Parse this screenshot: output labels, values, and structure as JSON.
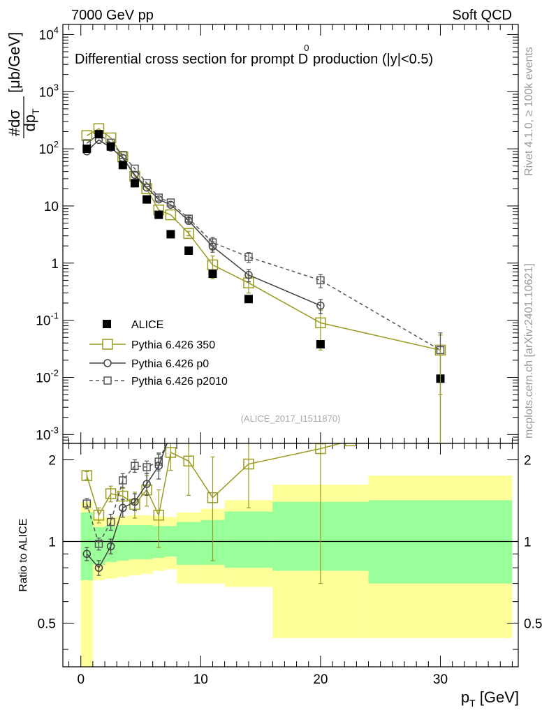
{
  "header": {
    "left": "7000 GeV pp",
    "right": "Soft QCD"
  },
  "side_labels": {
    "rivet": "Rivet 4.1.0, ≥ 100k events",
    "mcplots": "mcplots.cern.ch [arXiv:2401.10621]"
  },
  "colors": {
    "alice": "#000000",
    "p350": "#9a9a20",
    "p0": "#404040",
    "p2010": "#555555",
    "band_outer": "#ffff99",
    "band_inner": "#99ff99"
  },
  "chart_data": [
    {
      "type": "line",
      "title": "Differential cross section for prompt D0 production (|y|<0.5)",
      "title_parts": {
        "before": "Differential cross section for prompt D",
        "sup": "0",
        "after": " production (|y|<0.5)"
      },
      "ylabel": {
        "num_hash": "#",
        "num": "dσ",
        "den": "dp",
        "den_sub": "T",
        "unit": " [μb/GeV]"
      },
      "yscale": "log",
      "ylim": [
        0.0007,
        15000
      ],
      "xlim": [
        -1.5,
        36.5
      ],
      "ytick_labels": [
        {
          "base": "10",
          "exp": "-3",
          "value": 0.001
        },
        {
          "base": "10",
          "exp": "-2",
          "value": 0.01
        },
        {
          "base": "10",
          "exp": "-1",
          "value": 0.1
        },
        {
          "base": "1",
          "exp": "",
          "value": 1
        },
        {
          "base": "10",
          "exp": "",
          "value": 10
        },
        {
          "base": "10",
          "exp": "2",
          "value": 100
        },
        {
          "base": "10",
          "exp": "3",
          "value": 1000
        },
        {
          "base": "10",
          "exp": "4",
          "value": 10000
        }
      ],
      "watermark": "(ALICE_2017_I1511870)",
      "legend": [
        "ALICE",
        "Pythia 6.426 350",
        "Pythia 6.426 p0",
        "Pythia 6.426 p2010"
      ],
      "series": [
        {
          "name": "ALICE",
          "x": [
            0.5,
            1.5,
            2.5,
            3.5,
            4.5,
            5.5,
            6.5,
            7.5,
            9.0,
            11.0,
            14.0,
            20.0,
            30.0
          ],
          "y": [
            100,
            180,
            110,
            52,
            25,
            13,
            7,
            3.2,
            1.65,
            0.65,
            0.235,
            0.038,
            0.0095
          ]
        },
        {
          "name": "Pythia 6.426 350",
          "x": [
            0.5,
            1.5,
            2.5,
            3.5,
            4.5,
            5.5,
            6.5,
            7.5,
            9.0,
            11.0,
            14.0,
            20.0,
            30.0
          ],
          "y": [
            170,
            225,
            155,
            72,
            33,
            20,
            8.5,
            7.0,
            3.3,
            0.93,
            0.45,
            0.09,
            0.03
          ],
          "yerr": [
            0,
            0,
            0,
            0,
            0,
            0,
            0,
            0,
            0.3,
            0.4,
            0.15,
            0.06,
            0.025
          ]
        },
        {
          "name": "Pythia 6.426 p0",
          "x": [
            0.5,
            1.5,
            2.5,
            3.5,
            4.5,
            5.5,
            6.5,
            7.5,
            9.0,
            11.0,
            14.0,
            20.0
          ],
          "y": [
            90,
            143,
            105,
            69,
            35,
            21,
            13,
            10.5,
            5.5,
            1.95,
            0.62,
            0.18
          ],
          "yerr": [
            0,
            0,
            0,
            0,
            0,
            0,
            0,
            0,
            0.7,
            0.4,
            0.15,
            0.05
          ]
        },
        {
          "name": "Pythia 6.426 p2010",
          "x": [
            0.5,
            1.5,
            2.5,
            3.5,
            4.5,
            5.5,
            6.5,
            7.5,
            9.0,
            11.0,
            14.0,
            20.0,
            30.0
          ],
          "y": [
            125,
            180,
            128,
            78,
            45,
            25,
            14,
            11.5,
            6.0,
            2.3,
            1.28,
            0.5,
            0.03
          ],
          "yerr": [
            0,
            0,
            0,
            0,
            0,
            0,
            0,
            0,
            0.7,
            0.5,
            0.25,
            0.13,
            0.03
          ]
        }
      ]
    },
    {
      "type": "line",
      "ylabel": "Ratio to ALICE",
      "xlabel": {
        "main": "p",
        "sub": "T",
        "unit": " [GeV]"
      },
      "xlim": [
        -1.5,
        36.5
      ],
      "ylim": [
        0.345,
        2.3
      ],
      "yscale": "log",
      "xtick_labels": [
        "0",
        "10",
        "20",
        "30"
      ],
      "ytick_labels": [
        "0.5",
        "1",
        "2"
      ],
      "bands": {
        "edges": [
          0,
          1,
          2,
          3,
          4,
          5,
          6,
          7,
          8,
          10,
          12,
          16,
          24,
          36
        ],
        "outer_lo": [
          0.3,
          0.72,
          0.73,
          0.74,
          0.75,
          0.76,
          0.78,
          0.79,
          0.7,
          0.7,
          0.68,
          0.44,
          0.44
        ],
        "outer_hi": [
          1.4,
          1.22,
          1.23,
          1.24,
          1.25,
          1.25,
          1.24,
          1.23,
          1.28,
          1.32,
          1.42,
          1.62,
          1.75
        ],
        "inner_lo": [
          0.72,
          0.82,
          0.84,
          0.85,
          0.86,
          0.86,
          0.87,
          0.88,
          0.82,
          0.82,
          0.8,
          0.78,
          0.7
        ],
        "inner_hi": [
          1.28,
          1.13,
          1.14,
          1.15,
          1.15,
          1.15,
          1.14,
          1.14,
          1.18,
          1.2,
          1.29,
          1.4,
          1.42
        ]
      },
      "series": [
        {
          "name": "Pythia 6.426 350",
          "x": [
            0.5,
            1.5,
            2.5,
            3.5,
            4.5,
            5.5,
            6.5,
            7.5,
            9.0,
            11.0,
            14.0,
            20.0,
            22.5
          ],
          "y": [
            1.75,
            1.25,
            1.5,
            1.47,
            1.37,
            1.55,
            1.25,
            2.13,
            1.98,
            1.45,
            1.93,
            2.2,
            2.35
          ],
          "yerr": [
            0.06,
            0.08,
            0.1,
            0.1,
            0.15,
            0.2,
            0.3,
            0.3,
            0.5,
            0.6,
            0.6,
            1.5,
            0
          ]
        },
        {
          "name": "Pythia 6.426 p0",
          "x": [
            0.5,
            1.5,
            2.5,
            3.5,
            4.5,
            5.5,
            6.5,
            7.5
          ],
          "y": [
            0.9,
            0.8,
            0.96,
            1.33,
            1.4,
            1.63,
            1.9,
            2.5
          ],
          "yerr": [
            0.05,
            0.05,
            0.06,
            0.1,
            0.1,
            0.15,
            0.2,
            0
          ]
        },
        {
          "name": "Pythia 6.426 p2010",
          "x": [
            0.5,
            1.5,
            2.5,
            3.5,
            4.5,
            5.5,
            6.5,
            7.5
          ],
          "y": [
            1.38,
            0.98,
            1.18,
            1.68,
            1.9,
            1.88,
            1.97,
            2.5
          ],
          "yerr": [
            0.06,
            0.05,
            0.08,
            0.1,
            0.1,
            0.1,
            0.15,
            0
          ]
        }
      ]
    }
  ]
}
